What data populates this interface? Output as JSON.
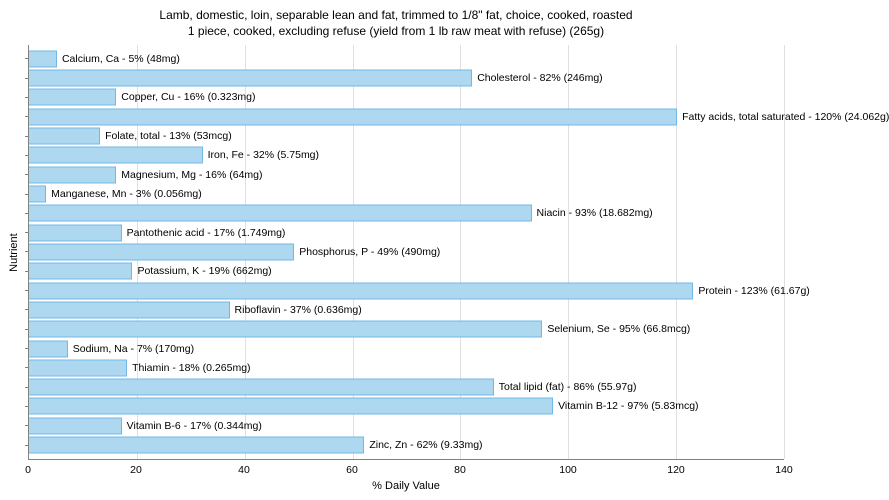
{
  "chart": {
    "type": "bar-horizontal",
    "title_line1": "Lamb, domestic, loin, separable lean and fat, trimmed to 1/8\" fat, choice, cooked, roasted",
    "title_line2": "1 piece, cooked, excluding refuse (yield from 1 lb raw meat with refuse) (265g)",
    "x_axis_label": "% Daily Value",
    "y_axis_label": "Nutrient",
    "x_min": 0,
    "x_max": 140,
    "x_tick_step": 20,
    "x_ticks": [
      0,
      20,
      40,
      60,
      80,
      100,
      120,
      140
    ],
    "bar_fill": "#add8f0",
    "bar_border": "#72b8e6",
    "grid_color": "#e0e0e0",
    "axis_color": "#808080",
    "background_color": "#ffffff",
    "title_fontsize": 12,
    "label_fontsize": 10.5,
    "axis_title_fontsize": 11,
    "bars": [
      {
        "label": "Calcium, Ca - 5% (48mg)",
        "value": 5
      },
      {
        "label": "Cholesterol - 82% (246mg)",
        "value": 82
      },
      {
        "label": "Copper, Cu - 16% (0.323mg)",
        "value": 16
      },
      {
        "label": "Fatty acids, total saturated - 120% (24.062g)",
        "value": 120
      },
      {
        "label": "Folate, total - 13% (53mcg)",
        "value": 13
      },
      {
        "label": "Iron, Fe - 32% (5.75mg)",
        "value": 32
      },
      {
        "label": "Magnesium, Mg - 16% (64mg)",
        "value": 16
      },
      {
        "label": "Manganese, Mn - 3% (0.056mg)",
        "value": 3
      },
      {
        "label": "Niacin - 93% (18.682mg)",
        "value": 93
      },
      {
        "label": "Pantothenic acid - 17% (1.749mg)",
        "value": 17
      },
      {
        "label": "Phosphorus, P - 49% (490mg)",
        "value": 49
      },
      {
        "label": "Potassium, K - 19% (662mg)",
        "value": 19
      },
      {
        "label": "Protein - 123% (61.67g)",
        "value": 123
      },
      {
        "label": "Riboflavin - 37% (0.636mg)",
        "value": 37
      },
      {
        "label": "Selenium, Se - 95% (66.8mcg)",
        "value": 95
      },
      {
        "label": "Sodium, Na - 7% (170mg)",
        "value": 7
      },
      {
        "label": "Thiamin - 18% (0.265mg)",
        "value": 18
      },
      {
        "label": "Total lipid (fat) - 86% (55.97g)",
        "value": 86
      },
      {
        "label": "Vitamin B-12 - 97% (5.83mcg)",
        "value": 97
      },
      {
        "label": "Vitamin B-6 - 17% (0.344mg)",
        "value": 17
      },
      {
        "label": "Zinc, Zn - 62% (9.33mg)",
        "value": 62
      }
    ]
  }
}
